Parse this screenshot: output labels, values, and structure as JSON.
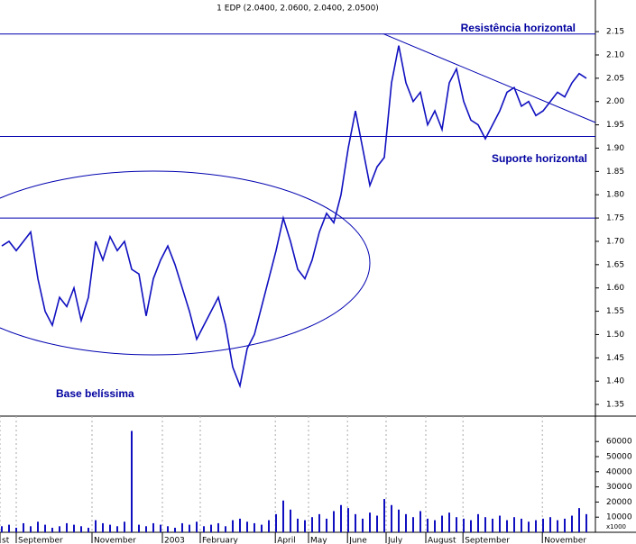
{
  "chart_data": [
    {
      "type": "line",
      "title": "1 EDP (2.0400, 2.0600, 2.0400, 2.0500)",
      "x": [
        0,
        1,
        2,
        3,
        4,
        5,
        6,
        7,
        8,
        9,
        10,
        11,
        12,
        13,
        14,
        15,
        16,
        17,
        18,
        19,
        20,
        21,
        22,
        23,
        24,
        25,
        26,
        27,
        28,
        29,
        30,
        31,
        32,
        33,
        34,
        35,
        36,
        37,
        38,
        39,
        40,
        41,
        42,
        43,
        44,
        45,
        46,
        47,
        48,
        49,
        50,
        51,
        52,
        53,
        54,
        55,
        56,
        57,
        58,
        59,
        60,
        61,
        62,
        63,
        64,
        65,
        66,
        67,
        68,
        69,
        70,
        71,
        72,
        73,
        74,
        75,
        76,
        77,
        78,
        79,
        80,
        81
      ],
      "series": [
        {
          "color": "#1010c0",
          "values": [
            1.69,
            1.7,
            1.68,
            1.7,
            1.72,
            1.62,
            1.55,
            1.52,
            1.58,
            1.56,
            1.6,
            1.53,
            1.58,
            1.7,
            1.66,
            1.71,
            1.68,
            1.7,
            1.64,
            1.63,
            1.54,
            1.62,
            1.66,
            1.69,
            1.65,
            1.6,
            1.55,
            1.49,
            1.52,
            1.55,
            1.58,
            1.52,
            1.43,
            1.39,
            1.47,
            1.5,
            1.56,
            1.62,
            1.68,
            1.75,
            1.7,
            1.64,
            1.62,
            1.66,
            1.72,
            1.76,
            1.74,
            1.8,
            1.9,
            1.98,
            1.9,
            1.82,
            1.86,
            1.88,
            2.04,
            2.12,
            2.04,
            2.0,
            2.02,
            1.95,
            1.98,
            1.94,
            2.04,
            2.07,
            2.0,
            1.96,
            1.95,
            1.92,
            1.95,
            1.98,
            2.02,
            2.03,
            1.99,
            2.0,
            1.97,
            1.98,
            2.0,
            2.02,
            2.01,
            2.04,
            2.06,
            2.05
          ]
        }
      ],
      "xlim": [
        -0.25,
        82.25
      ],
      "ylim": [
        1.325,
        2.214
      ],
      "yticks": [
        {
          "value": 1.35,
          "label": "1.35"
        },
        {
          "value": 1.4,
          "label": "1.40"
        },
        {
          "value": 1.45,
          "label": "1.45"
        },
        {
          "value": 1.5,
          "label": "1.50"
        },
        {
          "value": 1.55,
          "label": "1.55"
        },
        {
          "value": 1.6,
          "label": "1.60"
        },
        {
          "value": 1.65,
          "label": "1.65"
        },
        {
          "value": 1.7,
          "label": "1.70"
        },
        {
          "value": 1.75,
          "label": "1.75"
        },
        {
          "value": 1.8,
          "label": "1.80"
        },
        {
          "value": 1.85,
          "label": "1.85"
        },
        {
          "value": 1.9,
          "label": "1.90"
        },
        {
          "value": 1.95,
          "label": "1.95"
        },
        {
          "value": 2.0,
          "label": "2.00"
        },
        {
          "value": 2.05,
          "label": "2.05"
        },
        {
          "value": 2.1,
          "label": "2.10"
        },
        {
          "value": 2.15,
          "label": "2.15"
        }
      ],
      "hlines": [
        2.145,
        1.925,
        1.75
      ],
      "trendline": {
        "x": [
          52.9,
          82.25
        ],
        "y": [
          2.145,
          1.955
        ]
      },
      "annotations": [
        "Resistência horizontal",
        "Suporte horizontal",
        "Base belíssima"
      ],
      "line_color": "#0000b0"
    },
    {
      "type": "bar",
      "unit_label": "x1000",
      "x": [
        0,
        1,
        2,
        3,
        4,
        5,
        6,
        7,
        8,
        9,
        10,
        11,
        12,
        13,
        14,
        15,
        16,
        17,
        18,
        19,
        20,
        21,
        22,
        23,
        24,
        25,
        26,
        27,
        28,
        29,
        30,
        31,
        32,
        33,
        34,
        35,
        36,
        37,
        38,
        39,
        40,
        41,
        42,
        43,
        44,
        45,
        46,
        47,
        48,
        49,
        50,
        51,
        52,
        53,
        54,
        55,
        56,
        57,
        58,
        59,
        60,
        61,
        62,
        63,
        64,
        65,
        66,
        67,
        68,
        69,
        70,
        71,
        72,
        73,
        74,
        75,
        76,
        77,
        78,
        79,
        80,
        81
      ],
      "values": [
        4000,
        5000,
        3000,
        6000,
        4000,
        7000,
        5000,
        3000,
        4000,
        6000,
        5000,
        4000,
        3000,
        8000,
        6000,
        5000,
        4000,
        7000,
        67000,
        5000,
        4000,
        6000,
        5000,
        4000,
        3000,
        6000,
        5000,
        7000,
        4000,
        5000,
        6000,
        4000,
        8000,
        9000,
        7000,
        6000,
        5000,
        8000,
        12000,
        21000,
        15000,
        9000,
        8000,
        10000,
        12000,
        9000,
        14000,
        18000,
        16000,
        12000,
        9000,
        13000,
        11000,
        22000,
        18000,
        15000,
        12000,
        10000,
        14000,
        9000,
        8000,
        11000,
        13000,
        10000,
        9000,
        8000,
        12000,
        10000,
        9000,
        11000,
        8000,
        10000,
        9000,
        7000,
        8000,
        9000,
        10000,
        8000,
        9000,
        11000,
        16000,
        12000
      ],
      "color": "#1010c0",
      "xlim": [
        -0.25,
        82.25
      ],
      "ylim": [
        0,
        76800
      ],
      "yticks": [
        10000,
        20000,
        30000,
        40000,
        50000,
        60000
      ],
      "xticks": [
        {
          "value": -0.25,
          "label": "st"
        },
        {
          "value": 2,
          "label": "September"
        },
        {
          "value": 12.5,
          "label": "November"
        },
        {
          "value": 22.25,
          "label": "2003"
        },
        {
          "value": 27.5,
          "label": "February"
        },
        {
          "value": 37.9,
          "label": "April"
        },
        {
          "value": 42.5,
          "label": "May"
        },
        {
          "value": 47.9,
          "label": "June"
        },
        {
          "value": 53.25,
          "label": "July"
        },
        {
          "value": 58.75,
          "label": "August"
        },
        {
          "value": 63.9,
          "label": "September"
        },
        {
          "value": 74.9,
          "label": "November"
        }
      ]
    }
  ]
}
